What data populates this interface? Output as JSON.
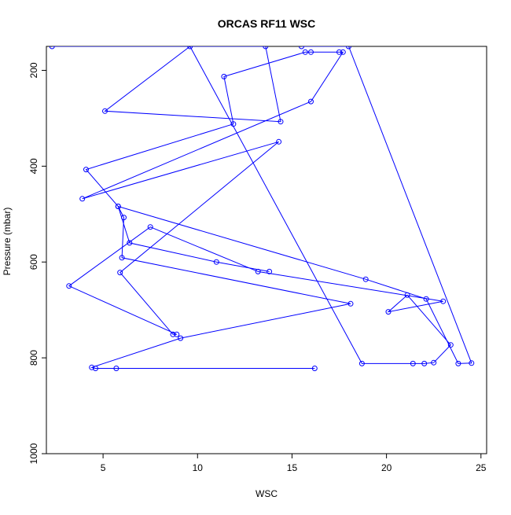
{
  "chart_data": {
    "type": "line",
    "title": "ORCAS RF11 WSC",
    "xlabel": "WSC",
    "ylabel": "Pressure (mbar)",
    "xlim": [
      2.0,
      25.3
    ],
    "ylim": [
      1000,
      150
    ],
    "y_reversed": true,
    "x_ticks": [
      5,
      10,
      15,
      20,
      25
    ],
    "y_ticks": [
      200,
      400,
      600,
      800,
      1000
    ],
    "grid": false,
    "legend": "none",
    "series_color": "#0000ff",
    "series": [
      {
        "x": [
          16.2,
          5.7,
          4.6,
          4.4,
          9.1,
          18.1,
          6.0,
          6.1,
          5.8,
          4.1,
          11.9,
          11.4,
          15.7,
          16.0,
          17.5,
          17.7,
          16.0,
          3.9,
          14.3,
          5.9,
          8.7,
          8.9,
          3.2,
          7.5,
          13.2,
          23.0,
          20.1,
          21.1,
          23.4,
          22.5,
          22.0,
          21.4,
          18.7,
          9.6,
          5.1,
          14.4,
          13.6,
          2.3
        ],
        "y": [
          822,
          822,
          822,
          820,
          759,
          687,
          591,
          507,
          484,
          407,
          312,
          213,
          162,
          162,
          162,
          162,
          265,
          468,
          349,
          622,
          751,
          751,
          650,
          527,
          620,
          682,
          704,
          669,
          773,
          810,
          812,
          812,
          812,
          150,
          285,
          307,
          150,
          150
        ]
      },
      {
        "x": [
          15.5,
          18.0,
          24.5,
          23.8,
          22.1,
          18.9,
          5.8,
          6.4,
          11.0,
          13.8
        ],
        "y": [
          150,
          150,
          811,
          812,
          677,
          636,
          484,
          560,
          600,
          620
        ]
      }
    ]
  }
}
